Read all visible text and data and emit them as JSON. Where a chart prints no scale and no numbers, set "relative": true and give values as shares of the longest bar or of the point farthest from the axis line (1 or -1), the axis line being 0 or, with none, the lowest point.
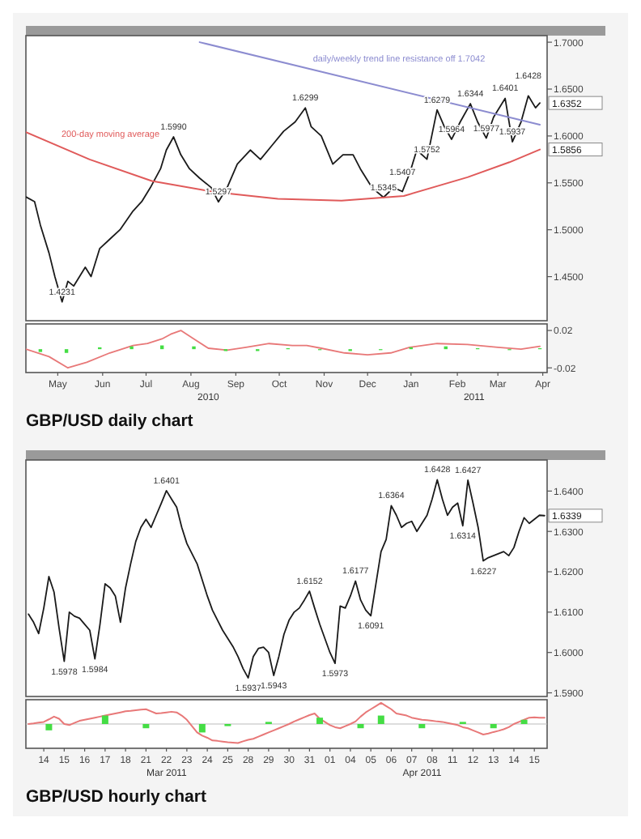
{
  "chart_data": [
    {
      "type": "line",
      "xlim": [
        "2010-04-23",
        "2011-04-18"
      ],
      "ylim": [
        1.403,
        1.707
      ],
      "tick_labels": "y",
      "yticks": [
        {
          "value": 1.45,
          "label": "1.4500"
        },
        {
          "value": 1.5,
          "label": "1.5000"
        },
        {
          "value": 1.55,
          "label": "1.5500"
        },
        {
          "value": 1.6,
          "label": "1.6000"
        },
        {
          "value": 1.65,
          "label": "1.6500"
        },
        {
          "value": 1.7,
          "label": "1.7000"
        }
      ],
      "series": [
        {
          "color": "#1a1a1a",
          "x": [
            "2010-04-23",
            "2010-04-29",
            "2010-05-03",
            "2010-05-09",
            "2010-05-13",
            "2010-05-18",
            "2010-05-22",
            "2010-05-26",
            "2010-06-03",
            "2010-06-07",
            "2010-06-13",
            "2010-06-20",
            "2010-06-27",
            "2010-07-06",
            "2010-07-12",
            "2010-07-18",
            "2010-07-25",
            "2010-07-29",
            "2010-08-03",
            "2010-08-08",
            "2010-08-14",
            "2010-08-21",
            "2010-08-29",
            "2010-09-03",
            "2010-09-09",
            "2010-09-16",
            "2010-09-25",
            "2010-10-02",
            "2010-10-10",
            "2010-10-18",
            "2010-10-26",
            "2010-11-02",
            "2010-11-06",
            "2010-11-13",
            "2010-11-21",
            "2010-11-28",
            "2010-12-05",
            "2010-12-10",
            "2010-12-18",
            "2010-12-26",
            "2011-01-02",
            "2011-01-08",
            "2011-01-13",
            "2011-01-18",
            "2011-01-25",
            "2011-02-01",
            "2011-02-06",
            "2011-02-11",
            "2011-02-17",
            "2011-02-24",
            "2011-03-01",
            "2011-03-07",
            "2011-03-12",
            "2011-03-20",
            "2011-03-25",
            "2011-03-31",
            "2011-04-05",
            "2011-04-10",
            "2011-04-13"
          ],
          "values": [
            1.535,
            1.53,
            1.505,
            1.475,
            1.45,
            1.4231,
            1.445,
            1.44,
            1.46,
            1.45,
            1.48,
            1.49,
            1.5,
            1.52,
            1.53,
            1.545,
            1.565,
            1.585,
            1.599,
            1.58,
            1.565,
            1.555,
            1.545,
            1.5297,
            1.545,
            1.57,
            1.585,
            1.575,
            1.59,
            1.605,
            1.615,
            1.6299,
            1.61,
            1.6,
            1.57,
            1.58,
            1.58,
            1.565,
            1.545,
            1.5345,
            1.545,
            1.5407,
            1.56,
            1.585,
            1.5752,
            1.6279,
            1.61,
            1.5964,
            1.615,
            1.6344,
            1.615,
            1.5977,
            1.62,
            1.6401,
            1.5937,
            1.615,
            1.6428,
            1.63,
            1.6352
          ]
        },
        {
          "name": "200-day moving average",
          "color": "#e05a5a",
          "x": [
            "2010-04-23",
            "2010-06-06",
            "2010-07-19",
            "2010-09-01",
            "2010-10-14",
            "2010-11-27",
            "2011-01-09",
            "2011-02-22",
            "2011-03-23",
            "2011-04-13"
          ],
          "values": [
            1.604,
            1.575,
            1.552,
            1.54,
            1.533,
            1.531,
            1.536,
            1.556,
            1.572,
            1.5856
          ]
        },
        {
          "name": "daily/weekly trend line resistance off 1.7042",
          "color": "#8c8cd0",
          "x": [
            "2010-08-21",
            "2011-04-13"
          ],
          "values": [
            1.7,
            1.612
          ]
        }
      ],
      "annotations": [
        {
          "text": "1.4231",
          "x": "2010-05-18",
          "y": 1.4231
        },
        {
          "text": "1.5990",
          "x": "2010-08-03",
          "y": 1.599
        },
        {
          "text": "1.5297",
          "x": "2010-09-03",
          "y": 1.5297
        },
        {
          "text": "1.6299",
          "x": "2010-11-02",
          "y": 1.6299
        },
        {
          "text": "1.5345",
          "x": "2010-12-26",
          "y": 1.5345
        },
        {
          "text": "1.5407",
          "x": "2011-01-08",
          "y": 1.5407
        },
        {
          "text": "1.5752",
          "x": "2011-01-25",
          "y": 1.5752
        },
        {
          "text": "1.6279",
          "x": "2011-02-01",
          "y": 1.6279
        },
        {
          "text": "1.5964",
          "x": "2011-02-11",
          "y": 1.5964
        },
        {
          "text": "1.6344",
          "x": "2011-02-24",
          "y": 1.6344
        },
        {
          "text": "1.5977",
          "x": "2011-03-07",
          "y": 1.5977
        },
        {
          "text": "1.6401",
          "x": "2011-03-20",
          "y": 1.6401
        },
        {
          "text": "1.5937",
          "x": "2011-03-25",
          "y": 1.5937
        },
        {
          "text": "1.6428",
          "x": "2011-04-05",
          "y": 1.6428
        },
        {
          "text": "1.6352",
          "x": "2011-04-18",
          "y": 1.6352
        },
        {
          "text": "1.5856",
          "x": "2011-04-18",
          "y": 1.5856
        }
      ]
    },
    {
      "type": "line",
      "title": "GBP/USD daily chart",
      "xlim": [
        "2010-04-23",
        "2011-04-18"
      ],
      "ylim": [
        -0.025,
        0.027
      ],
      "xticks": [
        {
          "value": "2010-05-15",
          "label": "May"
        },
        {
          "value": "2010-06-15",
          "label": "Jun"
        },
        {
          "value": "2010-07-15",
          "label": "Jul"
        },
        {
          "value": "2010-08-15",
          "label": "Aug"
        },
        {
          "value": "2010-09-15",
          "label": "Sep"
        },
        {
          "value": "2010-10-15",
          "label": "Oct"
        },
        {
          "value": "2010-11-15",
          "label": "Nov"
        },
        {
          "value": "2010-12-15",
          "label": "Dec"
        },
        {
          "value": "2011-01-14",
          "label": "Jan"
        },
        {
          "value": "2011-02-15",
          "label": "Feb"
        },
        {
          "value": "2011-03-15",
          "label": "Mar"
        },
        {
          "value": "2011-04-15",
          "label": "Apr"
        }
      ],
      "yticks": [
        0.02,
        {
          "value": -0.02,
          "label": "-0.02"
        }
      ],
      "series": [
        {
          "color": "#e87878",
          "x": [
            "2010-04-23",
            "2010-05-09",
            "2010-05-22",
            "2010-06-04",
            "2010-06-20",
            "2010-07-06",
            "2010-07-16",
            "2010-07-26",
            "2010-08-01",
            "2010-08-08",
            "2010-08-17",
            "2010-08-27",
            "2010-09-09",
            "2010-09-22",
            "2010-10-08",
            "2010-10-24",
            "2010-11-03",
            "2010-11-13",
            "2010-11-29",
            "2010-12-15",
            "2010-12-31",
            "2011-01-13",
            "2011-02-01",
            "2011-02-22",
            "2011-03-15",
            "2011-03-31",
            "2011-04-13"
          ],
          "values": [
            0,
            -0.008,
            -0.02,
            -0.014,
            -0.004,
            0.004,
            0.006,
            0.011,
            0.016,
            0.02,
            0.011,
            0.001,
            -0.001,
            0.002,
            0.006,
            0.004,
            0.004,
            0.001,
            -0.004,
            -0.006,
            -0.004,
            0.002,
            0.006,
            0.005,
            0.002,
            0,
            0.003
          ]
        },
        {
          "type": "bar",
          "color": "#44dd44",
          "x": [
            "2010-05-03",
            "2010-05-21",
            "2010-06-13",
            "2010-07-05",
            "2010-07-26",
            "2010-08-17",
            "2010-09-08",
            "2010-09-30",
            "2010-10-21",
            "2010-11-12",
            "2010-12-03",
            "2010-12-24",
            "2011-01-14",
            "2011-02-07",
            "2011-03-01",
            "2011-03-23",
            "2011-04-13"
          ],
          "values": [
            -0.003,
            -0.004,
            0.002,
            0.003,
            0.004,
            0.003,
            -0.002,
            -0.002,
            0.001,
            0,
            -0.002,
            -0.001,
            0.002,
            0.003,
            0.001,
            -0.001,
            0.001
          ]
        }
      ],
      "annotations": [
        "2010",
        "2011"
      ]
    },
    {
      "type": "line",
      "ylim": [
        1.5891,
        1.6477
      ],
      "tick_labels": "y",
      "categories": [
        null,
        null,
        null,
        "14",
        null,
        null,
        null,
        "15",
        null,
        null,
        null,
        "16",
        null,
        null,
        null,
        "17",
        null,
        null,
        null,
        "18",
        null,
        null,
        null,
        "21",
        null,
        null,
        null,
        "22",
        null,
        null,
        null,
        "23",
        null,
        null,
        null,
        "24",
        null,
        null,
        null,
        "25",
        null,
        null,
        null,
        "28",
        null,
        null,
        null,
        "29",
        null,
        null,
        null,
        "30",
        null,
        null,
        null,
        "31",
        null,
        null,
        null,
        "01",
        null,
        null,
        null,
        "04",
        null,
        null,
        null,
        "05",
        null,
        null,
        null,
        "06",
        null,
        null,
        null,
        "07",
        null,
        null,
        null,
        "08",
        null,
        null,
        null,
        "11",
        null,
        null,
        null,
        "12",
        null,
        null,
        null,
        "13",
        null,
        null,
        null,
        "14",
        null,
        null,
        null,
        "15",
        null,
        null
      ],
      "yticks": [
        {
          "value": 1.59,
          "label": "1.5900"
        },
        {
          "value": 1.6,
          "label": "1.6000"
        },
        {
          "value": 1.61,
          "label": "1.6100"
        },
        {
          "value": 1.62,
          "label": "1.6200"
        },
        {
          "value": 1.63,
          "label": "1.6300"
        },
        {
          "value": 1.64,
          "label": "1.6400"
        }
      ],
      "series": [
        {
          "color": "#1a1a1a",
          "values": [
            1.6095,
            1.6075,
            1.6047,
            1.611,
            1.6188,
            1.615,
            1.606,
            1.5978,
            1.61,
            1.609,
            1.6085,
            1.607,
            1.6055,
            1.5984,
            1.607,
            1.617,
            1.616,
            1.614,
            1.6075,
            1.616,
            1.622,
            1.6275,
            1.631,
            1.633,
            1.631,
            1.634,
            1.637,
            1.6401,
            1.638,
            1.636,
            1.631,
            1.627,
            1.6245,
            1.622,
            1.618,
            1.614,
            1.6105,
            1.608,
            1.6055,
            1.6035,
            1.6015,
            1.599,
            1.596,
            1.5937,
            1.599,
            1.601,
            1.6013,
            1.6,
            1.5943,
            1.599,
            1.6045,
            1.608,
            1.61,
            1.611,
            1.613,
            1.6152,
            1.611,
            1.607,
            1.6035,
            1.6,
            1.5973,
            1.6115,
            1.611,
            1.614,
            1.6177,
            1.613,
            1.6105,
            1.6091,
            1.617,
            1.625,
            1.628,
            1.6364,
            1.634,
            1.631,
            1.632,
            1.6325,
            1.63,
            1.632,
            1.634,
            1.638,
            1.6428,
            1.638,
            1.634,
            1.636,
            1.637,
            1.6314,
            1.6427,
            1.637,
            1.631,
            1.6227,
            1.6235,
            1.624,
            1.6245,
            1.625,
            1.624,
            1.626,
            1.63,
            1.6334,
            1.632,
            1.633,
            1.634,
            1.6339
          ]
        }
      ],
      "annotations": [
        {
          "text": "1.5978",
          "y": 1.5978
        },
        {
          "text": "1.5984",
          "y": 1.5984
        },
        {
          "text": "1.6401",
          "y": 1.6401
        },
        {
          "text": "1.5937",
          "y": 1.5937
        },
        {
          "text": "1.5943",
          "y": 1.5943
        },
        {
          "text": "1.6152",
          "y": 1.6152
        },
        {
          "text": "1.5973",
          "y": 1.5973
        },
        {
          "text": "1.6177",
          "y": 1.6177
        },
        {
          "text": "1.6091",
          "y": 1.6091
        },
        {
          "text": "1.6364",
          "y": 1.6364
        },
        {
          "text": "1.6428",
          "y": 1.6428
        },
        {
          "text": "1.6314",
          "y": 1.6314
        },
        {
          "text": "1.6427",
          "y": 1.6427
        },
        {
          "text": "1.6227",
          "y": 1.6227
        },
        "1.6339"
      ]
    },
    {
      "type": "line",
      "title": "GBP/USD hourly chart",
      "relative": true,
      "categories": [
        null,
        null,
        null,
        "14",
        null,
        null,
        null,
        "15",
        null,
        null,
        null,
        "16",
        null,
        null,
        null,
        "17",
        null,
        null,
        null,
        "18",
        null,
        null,
        null,
        "21",
        null,
        null,
        null,
        "22",
        null,
        null,
        null,
        "23",
        null,
        null,
        null,
        "24",
        null,
        null,
        null,
        "25",
        null,
        null,
        null,
        "28",
        null,
        null,
        null,
        "29",
        null,
        null,
        null,
        "30",
        null,
        null,
        null,
        "31",
        null,
        null,
        null,
        "01",
        null,
        null,
        null,
        "04",
        null,
        null,
        null,
        "05",
        null,
        null,
        null,
        "06",
        null,
        null,
        null,
        "07",
        null,
        null,
        null,
        "08",
        null,
        null,
        null,
        "11",
        null,
        null,
        null,
        "12",
        null,
        null,
        null,
        "13",
        null,
        null,
        null,
        "14",
        null,
        null,
        null,
        "15",
        null,
        null
      ],
      "series": [
        {
          "color": "#e87878",
          "values": [
            0,
            0.03,
            0.07,
            0.1,
            0.22,
            0.35,
            0.25,
            0,
            -0.05,
            0.05,
            0.15,
            0.2,
            0.25,
            0.3,
            0.35,
            0.4,
            0.45,
            0.5,
            0.55,
            0.6,
            0.62,
            0.65,
            0.68,
            0.7,
            0.6,
            0.5,
            0.52,
            0.55,
            0.58,
            0.55,
            0.4,
            0.2,
            -0.1,
            -0.4,
            -0.55,
            -0.65,
            -0.78,
            -0.8,
            -0.83,
            -0.86,
            -0.88,
            -0.9,
            -0.82,
            -0.75,
            -0.7,
            -0.6,
            -0.5,
            -0.4,
            -0.3,
            -0.2,
            -0.1,
            0,
            0.12,
            0.22,
            0.32,
            0.42,
            0.5,
            0.25,
            0.1,
            -0.05,
            -0.15,
            -0.2,
            -0.1,
            0,
            0.12,
            0.35,
            0.55,
            0.7,
            0.85,
            1,
            0.85,
            0.7,
            0.5,
            0.45,
            0.4,
            0.3,
            0.25,
            0.2,
            0.18,
            0.15,
            0.12,
            0.1,
            0.05,
            0,
            -0.05,
            -0.15,
            -0.2,
            -0.3,
            -0.4,
            -0.5,
            -0.45,
            -0.38,
            -0.32,
            -0.25,
            -0.15,
            0,
            0.1,
            0.2,
            0.3,
            0.32,
            0.3,
            0.3
          ]
        },
        {
          "type": "bar",
          "color": "#44dd44",
          "values": [
            null,
            null,
            null,
            null,
            -0.3,
            null,
            null,
            null,
            null,
            null,
            null,
            null,
            null,
            null,
            null,
            0.4,
            null,
            null,
            null,
            null,
            null,
            null,
            null,
            -0.2,
            null,
            null,
            null,
            null,
            null,
            null,
            null,
            null,
            null,
            null,
            -0.4,
            null,
            null,
            null,
            null,
            -0.1,
            null,
            null,
            null,
            null,
            null,
            null,
            null,
            0.1,
            null,
            null,
            null,
            null,
            null,
            null,
            null,
            null,
            null,
            0.3,
            null,
            null,
            null,
            null,
            null,
            null,
            null,
            -0.2,
            null,
            null,
            null,
            0.4,
            null,
            null,
            null,
            null,
            null,
            null,
            null,
            -0.2,
            null,
            null,
            null,
            null,
            null,
            null,
            null,
            0.1,
            null,
            null,
            null,
            null,
            null,
            -0.2,
            null,
            null,
            null,
            null,
            null,
            0.2,
            null,
            null,
            null,
            null
          ]
        }
      ],
      "annotations": [
        "Mar 2011",
        "Apr 2011"
      ]
    }
  ]
}
